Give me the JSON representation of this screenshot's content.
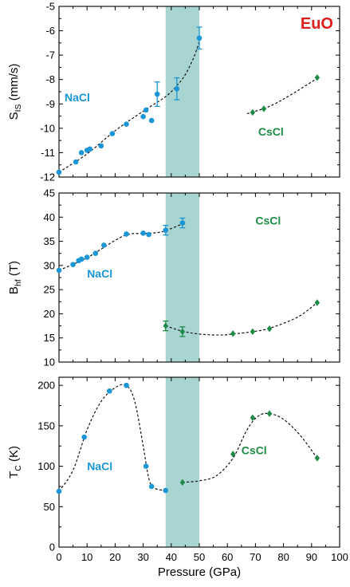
{
  "figure": {
    "colors": {
      "nacl": "#1a96d6",
      "cscl": "#1e8a45",
      "title": "#dd1c1c",
      "band": "#a8d5d1"
    },
    "shaded_region": {
      "x_from": 38,
      "x_to": 50
    },
    "x_axis": {
      "label": "Pressure (GPa)",
      "range": [
        0,
        100
      ],
      "ticks": [
        "0",
        "10",
        "20",
        "30",
        "40",
        "50",
        "60",
        "70",
        "80",
        "90",
        "100"
      ]
    }
  },
  "chart_data": [
    {
      "type": "scatter",
      "label": "EuO",
      "ylabel_main": "S",
      "ylabel_sub": "IS",
      "ylabel_unit": " (mm/s)",
      "ylim": [
        -12,
        -5
      ],
      "yticks": [
        "-12",
        "-11",
        "-10",
        "-9",
        "-8",
        "-7",
        "-6",
        "-5"
      ],
      "annotations": [
        {
          "text": "NaCl",
          "x": 2,
          "y": -8.9,
          "phase": "nacl"
        },
        {
          "text": "CsCl",
          "x": 71,
          "y": -10.3,
          "phase": "cscl"
        }
      ],
      "series": [
        {
          "phase": "nacl",
          "points": [
            [
              0,
              -11.8
            ],
            [
              6,
              -11.38
            ],
            [
              8,
              -11.0
            ],
            [
              10,
              -10.9
            ],
            [
              11,
              -10.85
            ],
            [
              15,
              -10.72
            ],
            [
              19,
              -10.22
            ],
            [
              24,
              -9.83
            ],
            [
              30,
              -9.52
            ],
            [
              31,
              -9.25
            ],
            [
              33,
              -9.68
            ],
            [
              35,
              -8.6
            ],
            [
              42,
              -8.38
            ],
            [
              50,
              -6.3
            ]
          ],
          "errors": [
            [
              35,
              0.5
            ],
            [
              42,
              0.45
            ],
            [
              50,
              0.45
            ]
          ],
          "fit": [
            [
              0,
              -11.8
            ],
            [
              10,
              -11.05
            ],
            [
              20,
              -10.1
            ],
            [
              30,
              -9.3
            ],
            [
              38,
              -8.7
            ],
            [
              42,
              -8.25
            ],
            [
              45,
              -7.8
            ],
            [
              48,
              -7.1
            ],
            [
              50,
              -6.45
            ]
          ]
        },
        {
          "phase": "cscl",
          "points": [
            [
              69,
              -9.35
            ],
            [
              73,
              -9.2
            ],
            [
              92,
              -7.92
            ]
          ],
          "fit": [
            [
              67,
              -9.4
            ],
            [
              75,
              -9.1
            ],
            [
              83,
              -8.6
            ],
            [
              92,
              -7.95
            ]
          ]
        }
      ]
    },
    {
      "type": "scatter",
      "ylabel_main": "B",
      "ylabel_sub": "hf",
      "ylabel_unit": " (T)",
      "ylim": [
        10,
        45
      ],
      "yticks": [
        "10",
        "15",
        "20",
        "25",
        "30",
        "35",
        "40",
        "45"
      ],
      "annotations": [
        {
          "text": "CsCl",
          "x": 70,
          "y": 38.5,
          "phase": "cscl"
        },
        {
          "text": "NaCl",
          "x": 10,
          "y": 27.5,
          "phase": "nacl"
        }
      ],
      "series": [
        {
          "phase": "nacl",
          "points": [
            [
              0,
              29
            ],
            [
              5,
              30.2
            ],
            [
              7,
              31
            ],
            [
              8,
              31.3
            ],
            [
              10,
              31.7
            ],
            [
              13,
              32.5
            ],
            [
              16,
              34.2
            ],
            [
              24,
              36.5
            ],
            [
              30,
              36.7
            ],
            [
              32,
              36.4
            ],
            [
              38,
              37.3
            ],
            [
              44,
              38.8
            ]
          ],
          "errors": [
            [
              38,
              1.0
            ],
            [
              44,
              1.0
            ]
          ],
          "fit": [
            [
              0,
              29
            ],
            [
              10,
              31.6
            ],
            [
              20,
              35.2
            ],
            [
              25,
              36.5
            ],
            [
              30,
              36.6
            ],
            [
              35,
              36.8
            ],
            [
              38,
              37.2
            ],
            [
              44,
              38.6
            ]
          ]
        },
        {
          "phase": "cscl",
          "points": [
            [
              38,
              17.5
            ],
            [
              44,
              16.3
            ],
            [
              62,
              15.9
            ],
            [
              69,
              16.3
            ],
            [
              75,
              16.9
            ],
            [
              92,
              22.3
            ]
          ],
          "errors": [
            [
              38,
              1.0
            ],
            [
              44,
              1.0
            ]
          ],
          "fit": [
            [
              38,
              17.5
            ],
            [
              44,
              16.4
            ],
            [
              50,
              15.8
            ],
            [
              57,
              15.6
            ],
            [
              62,
              15.8
            ],
            [
              69,
              16.3
            ],
            [
              75,
              17
            ],
            [
              85,
              19.3
            ],
            [
              92,
              22.3
            ]
          ]
        }
      ]
    },
    {
      "type": "scatter",
      "ylabel_main": "T",
      "ylabel_sub": "C",
      "ylabel_unit": " (K)",
      "ylim": [
        0,
        210
      ],
      "yticks": [
        "0",
        "50",
        "100",
        "150",
        "200"
      ],
      "annotations": [
        {
          "text": "NaCl",
          "x": 10,
          "y": 95,
          "phase": "nacl"
        },
        {
          "text": "CsCl",
          "x": 65,
          "y": 115,
          "phase": "cscl"
        }
      ],
      "series": [
        {
          "phase": "nacl",
          "points": [
            [
              0,
              69
            ],
            [
              9,
              136
            ],
            [
              18,
              193
            ],
            [
              24,
              200
            ],
            [
              31,
              100
            ],
            [
              33,
              75
            ],
            [
              38,
              70
            ]
          ],
          "fit": [
            [
              0,
              69
            ],
            [
              5,
              95
            ],
            [
              10,
              145
            ],
            [
              15,
              180
            ],
            [
              20,
              197
            ],
            [
              24,
              200
            ],
            [
              27,
              180
            ],
            [
              30,
              125
            ],
            [
              32,
              85
            ],
            [
              34,
              73
            ],
            [
              38,
              70
            ]
          ]
        },
        {
          "phase": "cscl",
          "points": [
            [
              44,
              80
            ],
            [
              62,
              115
            ],
            [
              69,
              160
            ],
            [
              75,
              165
            ],
            [
              92,
              110
            ]
          ],
          "fit": [
            [
              44,
              80
            ],
            [
              50,
              82
            ],
            [
              56,
              88
            ],
            [
              62,
              110
            ],
            [
              67,
              145
            ],
            [
              71,
              162
            ],
            [
              75,
              165
            ],
            [
              80,
              158
            ],
            [
              86,
              138
            ],
            [
              92,
              110
            ]
          ]
        }
      ]
    }
  ]
}
